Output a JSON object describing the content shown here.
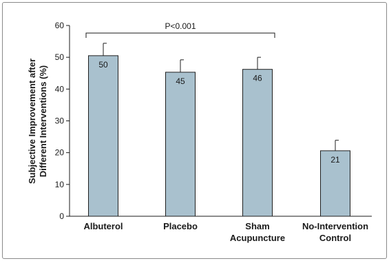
{
  "chart_data": {
    "type": "bar",
    "categories": [
      [
        "Albuterol"
      ],
      [
        "Placebo"
      ],
      [
        "Sham",
        "Acupuncture"
      ],
      [
        "No-Intervention",
        "Control"
      ]
    ],
    "values": [
      50,
      45,
      46,
      21
    ],
    "bar_heights": [
      50.5,
      45.3,
      46.2,
      20.6
    ],
    "error_upper": [
      54.4,
      49.2,
      50.0,
      23.9
    ],
    "data_labels": [
      "50",
      "45",
      "46",
      "21"
    ],
    "ylabel": [
      "Subjective Improvement after",
      "Different Interventions (%)"
    ],
    "ylim": [
      0,
      60
    ],
    "yticks": [
      0,
      10,
      20,
      30,
      40,
      50,
      60
    ],
    "annotation": {
      "text": "P<0.001",
      "from_category": 0,
      "to_category": 2
    },
    "grid": false,
    "colors": {
      "bar_fill": "#a9c1ce",
      "bar_stroke": "#1f1f1f",
      "axis": "#1a1a1a"
    }
  }
}
